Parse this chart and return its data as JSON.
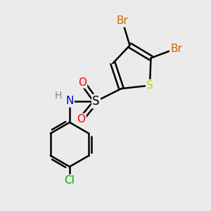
{
  "bg_color": "#ebebeb",
  "atom_colors": {
    "S_thiophene": "#cccc00",
    "S_sulfonyl": "#000000",
    "N": "#0000cd",
    "H": "#778899",
    "O": "#ff0000",
    "Br": "#cc6600",
    "Cl": "#00aa00"
  },
  "bond_color": "#000000",
  "bond_width": 1.8,
  "font_size": 10.5
}
